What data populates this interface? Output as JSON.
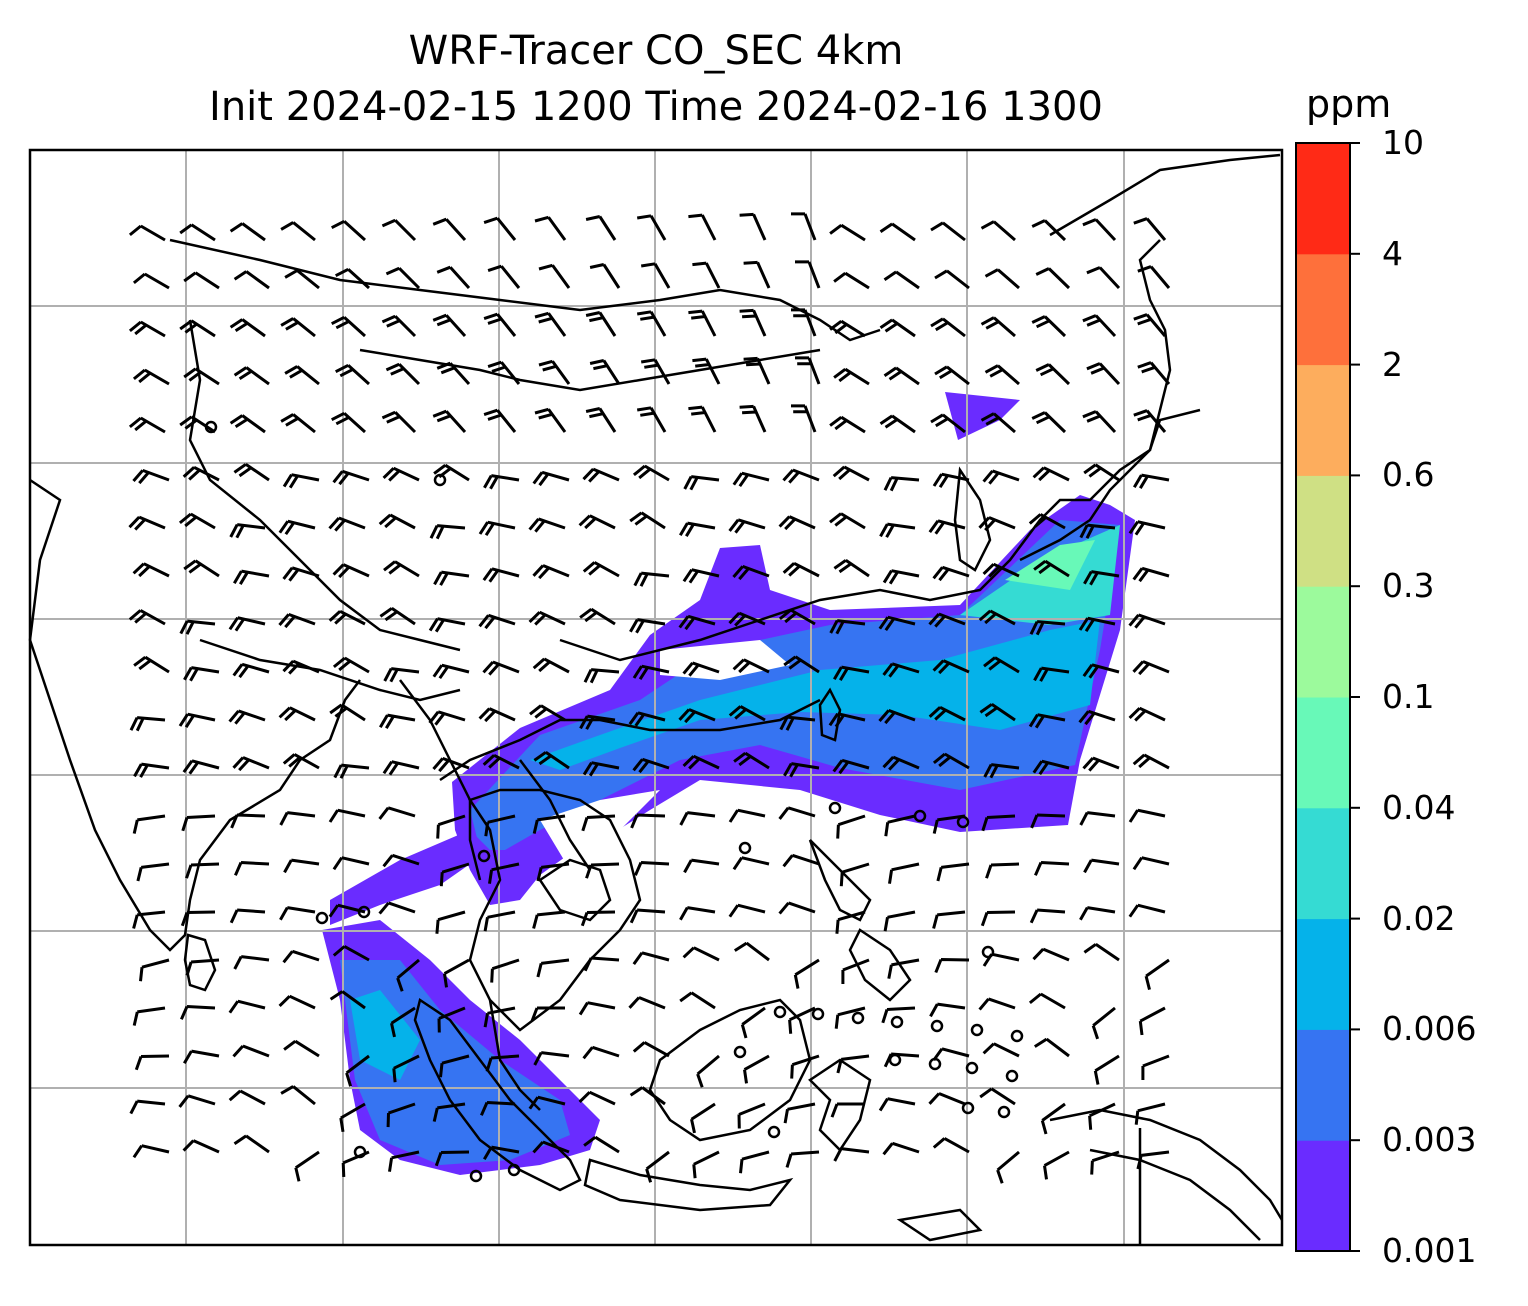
{
  "title": {
    "line1": "WRF-Tracer CO_SEC 4km",
    "line2": "Init 2024-02-15 1200 Time 2024-02-16 1300"
  },
  "colorbar": {
    "unit": "ppm",
    "ticks": [
      "10",
      "4",
      "2",
      "0.6",
      "0.3",
      "0.1",
      "0.04",
      "0.02",
      "0.006",
      "0.003",
      "0.001"
    ],
    "colors": [
      "#6a2cff",
      "#3674f2",
      "#05b2ea",
      "#35dbd3",
      "#68f9b8",
      "#9cfa9c",
      "#cfe084",
      "#fdad5d",
      "#fe703b",
      "#ff2a16"
    ]
  },
  "map": {
    "projection": "lat-lon grid with coastlines and country borders",
    "gridlines": true,
    "wind_barbs": true,
    "calm_markers": true
  }
}
